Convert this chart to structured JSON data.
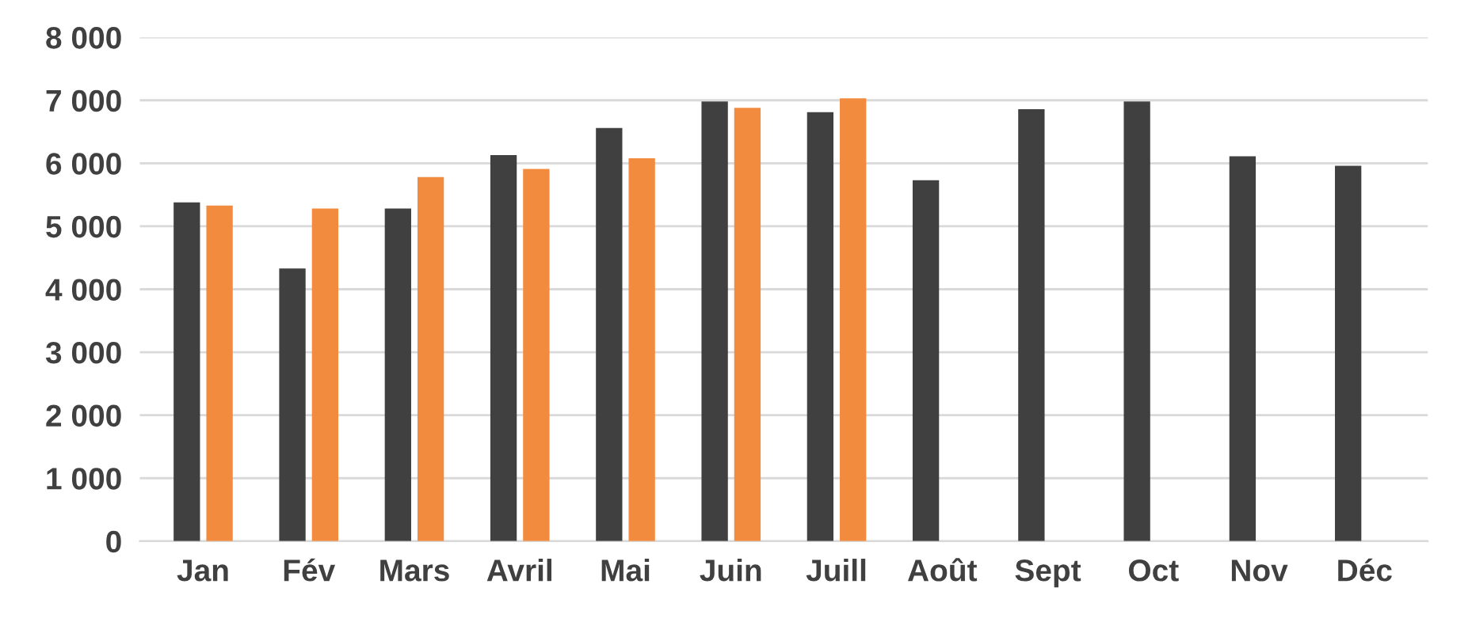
{
  "chart_data": {
    "type": "bar",
    "categories": [
      "Jan",
      "Fév",
      "Mars",
      "Avril",
      "Mai",
      "Juin",
      "Juill",
      "Août",
      "Sept",
      "Oct",
      "Nov",
      "Déc"
    ],
    "series": [
      {
        "color": "#404040",
        "values": [
          5380,
          4330,
          5280,
          6130,
          6560,
          6980,
          6810,
          5730,
          6860,
          6980,
          6110,
          5960
        ]
      },
      {
        "color": "#f38b3e",
        "values": [
          5330,
          5280,
          5780,
          5910,
          6080,
          6880,
          7030,
          null,
          null,
          null,
          null,
          null
        ]
      }
    ],
    "ylim": [
      0,
      8000
    ],
    "yticks": [
      {
        "value": 0,
        "label": "0"
      },
      {
        "value": 1000,
        "label": "1 000"
      },
      {
        "value": 2000,
        "label": "2 000"
      },
      {
        "value": 3000,
        "label": "3 000"
      },
      {
        "value": 4000,
        "label": "4 000"
      },
      {
        "value": 5000,
        "label": "5 000"
      },
      {
        "value": 6000,
        "label": "6 000"
      },
      {
        "value": 7000,
        "label": "7 000"
      },
      {
        "value": 8000,
        "label": "8 000"
      }
    ],
    "grid": "y"
  }
}
